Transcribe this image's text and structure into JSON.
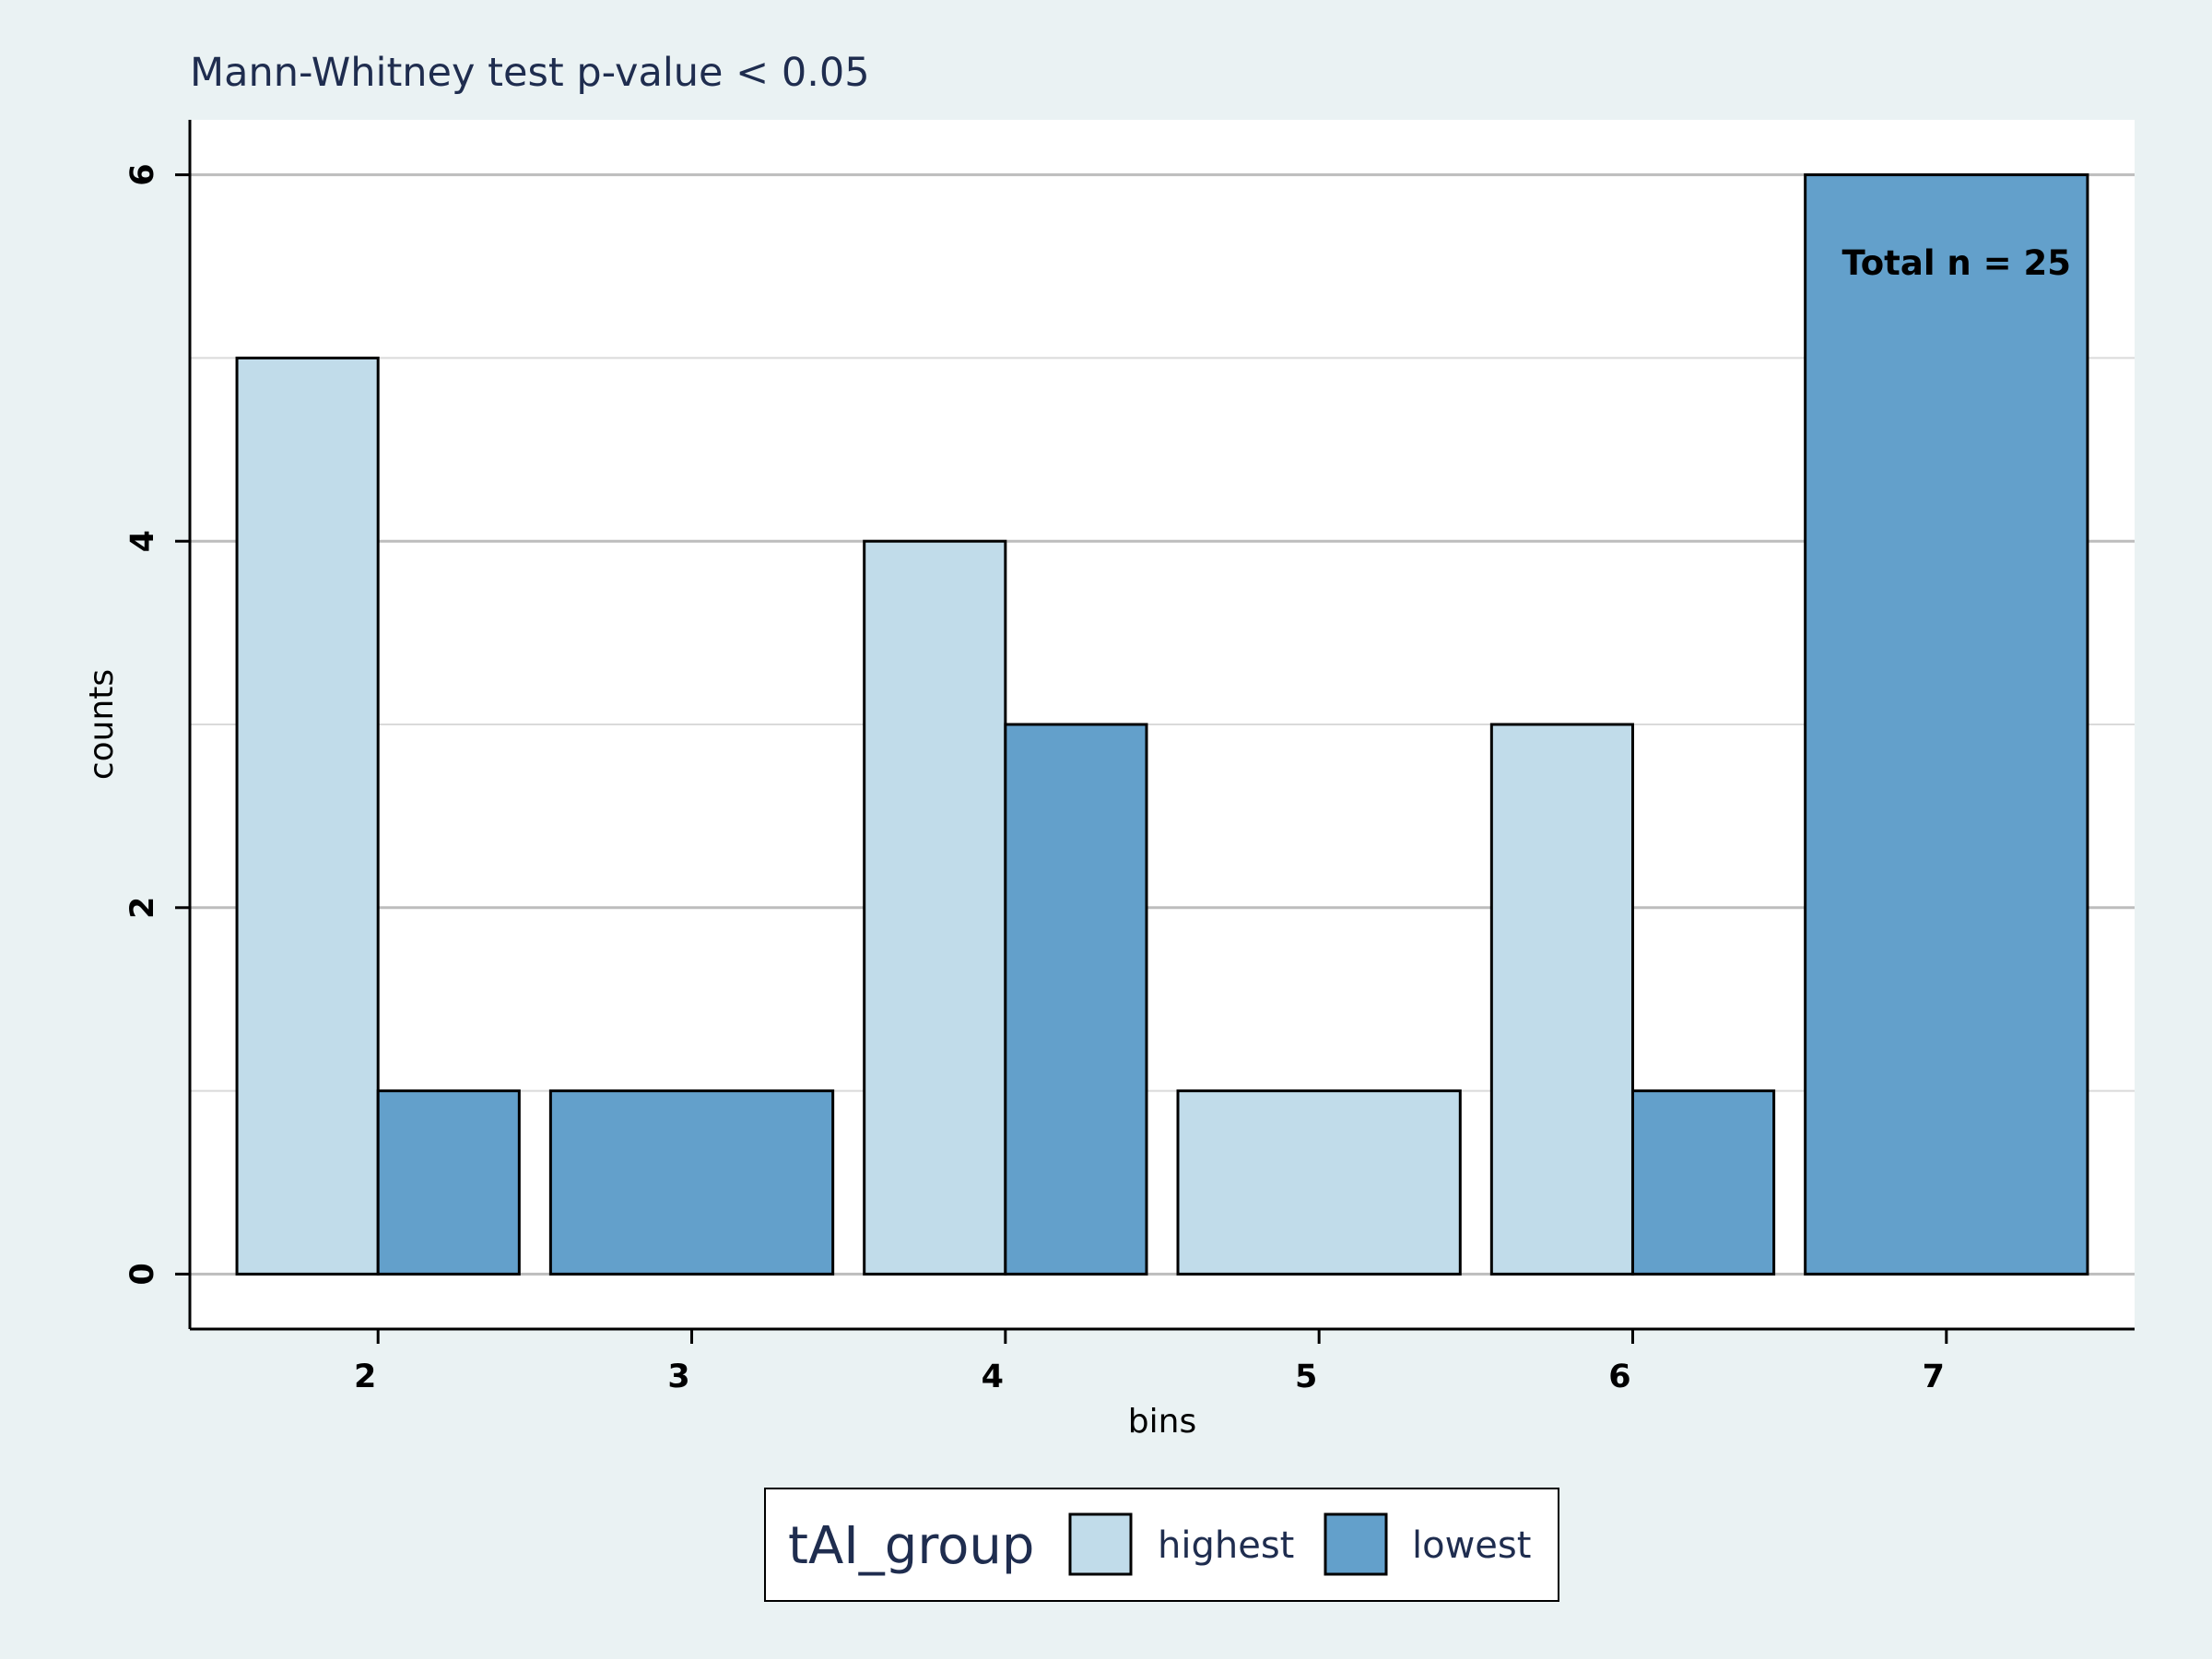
{
  "chart_data": {
    "type": "bar",
    "title": "Mann-Whitney test  p-value < 0.05",
    "xlabel": "bins",
    "ylabel": "counts",
    "categories": [
      "2",
      "3",
      "4",
      "5",
      "6",
      "7"
    ],
    "series": [
      {
        "name": "highest",
        "values": [
          5,
          0,
          4,
          1,
          3,
          0
        ]
      },
      {
        "name": "lowest",
        "values": [
          1,
          1,
          3,
          0,
          1,
          6
        ]
      }
    ],
    "ylim": [
      -0.3,
      6.3
    ],
    "yticks": [
      0,
      2,
      4,
      6
    ],
    "grid": true,
    "annotation": "Total n = 25",
    "legend": {
      "title": "tAI_group",
      "placement": "bottom-center"
    },
    "colors": {
      "highest": "#c1dcea",
      "lowest": "#63a0cb",
      "background": "#eaf2f3",
      "plot_background": "#ffffff"
    }
  }
}
